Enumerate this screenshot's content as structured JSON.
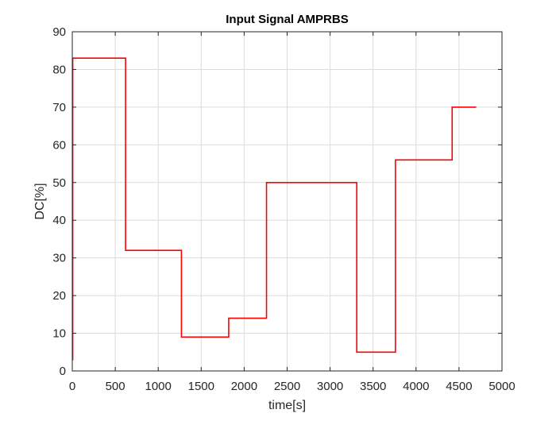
{
  "chart_data": {
    "type": "line",
    "title": "Input Signal AMPRBS",
    "xlabel": "time[s]",
    "ylabel": "DC[%]",
    "xlim": [
      0,
      5000
    ],
    "ylim": [
      0,
      90
    ],
    "xticks": [
      0,
      500,
      1000,
      1500,
      2000,
      2500,
      3000,
      3500,
      4000,
      4500,
      5000
    ],
    "xtick_labels": [
      "0",
      "500",
      "1000",
      "1500",
      "2000",
      "2500",
      "3000",
      "3500",
      "4000",
      "4500",
      "5000"
    ],
    "yticks": [
      0,
      10,
      20,
      30,
      40,
      50,
      60,
      70,
      80,
      90
    ],
    "ytick_labels": [
      "0",
      "10",
      "20",
      "30",
      "40",
      "50",
      "60",
      "70",
      "80",
      "90"
    ],
    "grid": true,
    "box": true,
    "series": [
      {
        "color": "#ff0000",
        "step": "post",
        "x": [
          0,
          5,
          620,
          1270,
          1820,
          2260,
          3310,
          3760,
          4420,
          4700
        ],
        "y": [
          3,
          83,
          32,
          9,
          14,
          50,
          5,
          56,
          70,
          70
        ]
      }
    ]
  }
}
